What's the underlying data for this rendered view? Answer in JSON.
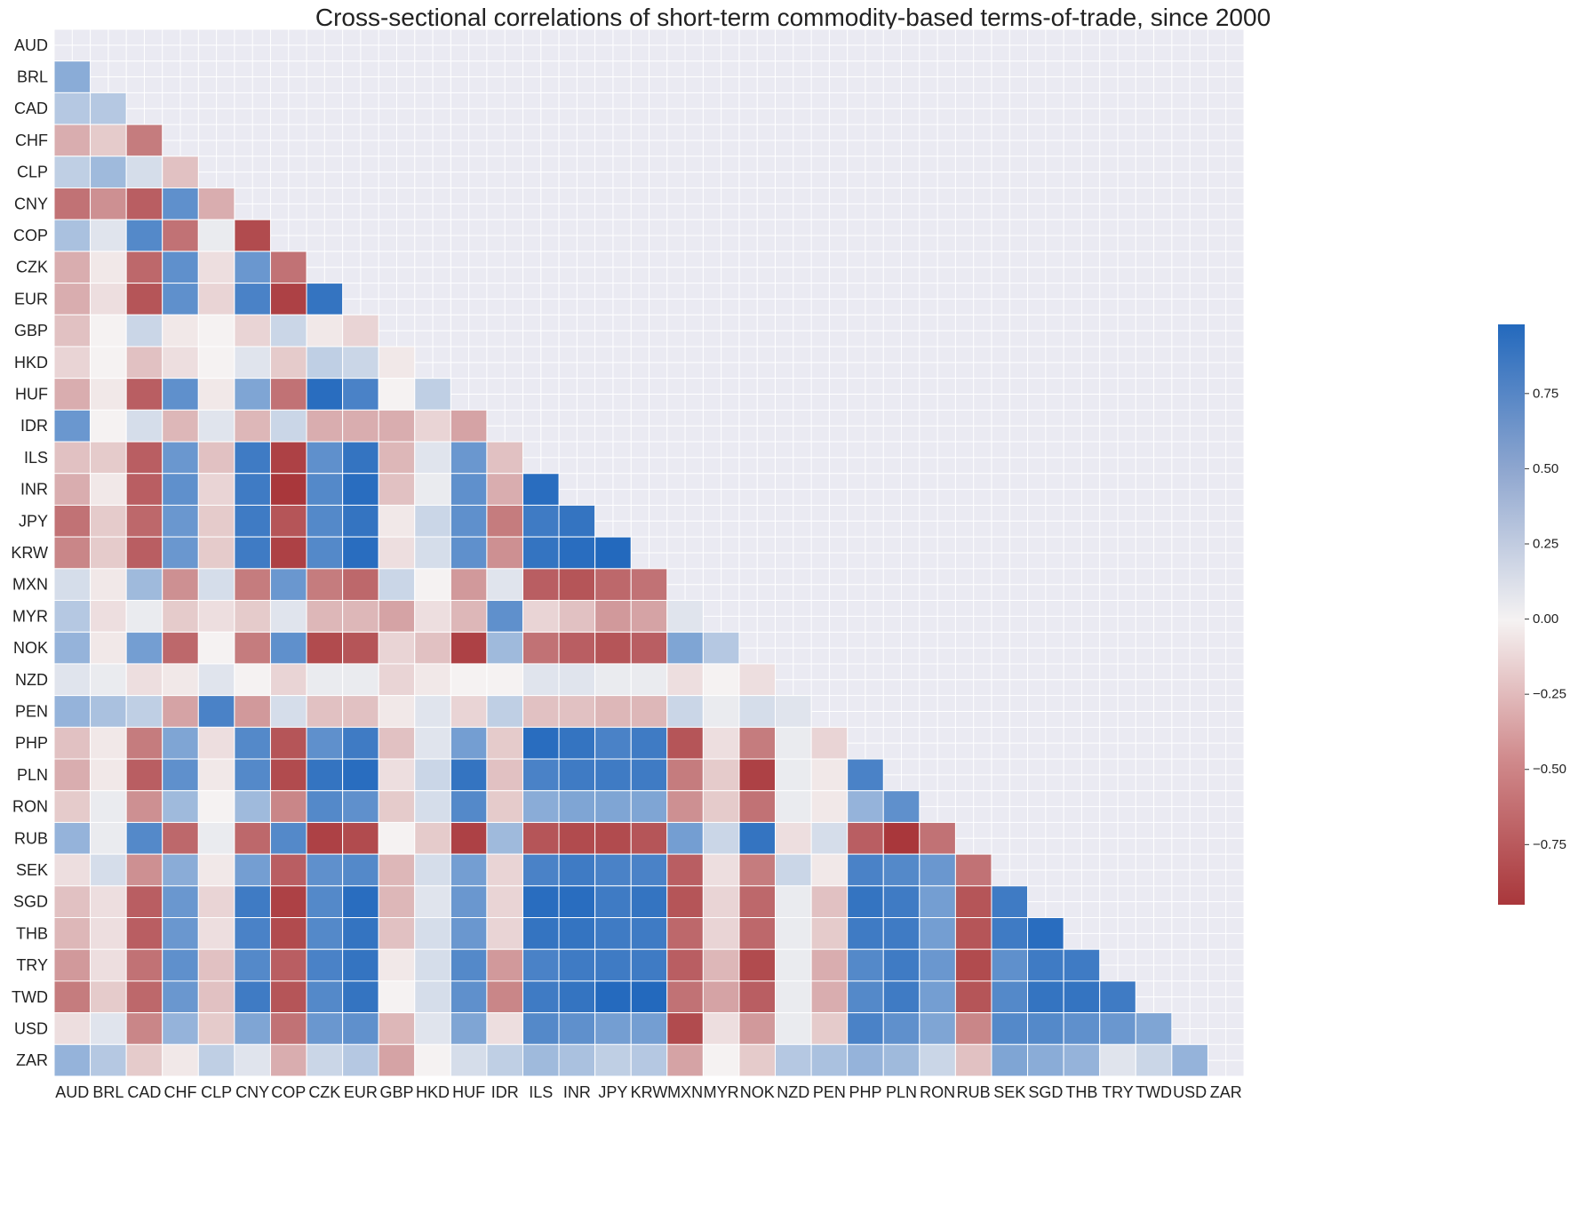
{
  "chart_data": {
    "type": "heatmap",
    "title": "Cross-sectional correlations of short-term commodity-based terms-of-trade, since 2000",
    "labels": [
      "AUD",
      "BRL",
      "CAD",
      "CHF",
      "CLP",
      "CNY",
      "COP",
      "CZK",
      "EUR",
      "GBP",
      "HKD",
      "HUF",
      "IDR",
      "ILS",
      "INR",
      "JPY",
      "KRW",
      "MXN",
      "MYR",
      "NOK",
      "NZD",
      "PEN",
      "PHP",
      "PLN",
      "RON",
      "RUB",
      "SEK",
      "SGD",
      "THB",
      "TRY",
      "TWD",
      "USD",
      "ZAR"
    ],
    "mask": "upper-triangle-and-diagonal",
    "rows": [
      [],
      [
        0.5
      ],
      [
        0.3,
        0.3
      ],
      [
        -0.35,
        -0.2,
        -0.6
      ],
      [
        0.25,
        0.4,
        0.15,
        -0.25
      ],
      [
        -0.65,
        -0.5,
        -0.75,
        0.7,
        -0.35
      ],
      [
        0.35,
        0.1,
        0.75,
        -0.65,
        0.05,
        -0.85
      ],
      [
        -0.35,
        -0.05,
        -0.7,
        0.7,
        -0.1,
        0.65,
        -0.65
      ],
      [
        -0.35,
        -0.1,
        -0.8,
        0.7,
        -0.15,
        0.8,
        -0.9,
        0.9
      ],
      [
        -0.25,
        0.0,
        0.2,
        -0.05,
        0.0,
        -0.15,
        0.2,
        -0.05,
        -0.15
      ],
      [
        -0.15,
        0.0,
        -0.25,
        -0.1,
        0.0,
        0.1,
        -0.2,
        0.25,
        0.2,
        -0.05
      ],
      [
        -0.35,
        -0.05,
        -0.75,
        0.7,
        -0.05,
        0.55,
        -0.65,
        0.95,
        0.8,
        0.0,
        0.25
      ],
      [
        0.65,
        0.0,
        0.15,
        -0.3,
        0.1,
        -0.3,
        0.2,
        -0.35,
        -0.35,
        -0.35,
        -0.15,
        -0.4
      ],
      [
        -0.25,
        -0.2,
        -0.75,
        0.65,
        -0.25,
        0.85,
        -0.9,
        0.7,
        0.9,
        -0.3,
        0.1,
        0.65,
        -0.25
      ],
      [
        -0.35,
        -0.05,
        -0.75,
        0.7,
        -0.15,
        0.85,
        -0.95,
        0.75,
        0.95,
        -0.25,
        0.05,
        0.7,
        -0.35,
        0.95
      ],
      [
        -0.65,
        -0.2,
        -0.7,
        0.65,
        -0.2,
        0.85,
        -0.8,
        0.75,
        0.9,
        -0.05,
        0.2,
        0.7,
        -0.6,
        0.85,
        0.9
      ],
      [
        -0.55,
        -0.2,
        -0.75,
        0.65,
        -0.2,
        0.85,
        -0.9,
        0.75,
        0.95,
        -0.1,
        0.15,
        0.7,
        -0.5,
        0.9,
        0.95,
        0.98
      ],
      [
        0.15,
        -0.05,
        0.4,
        -0.5,
        0.15,
        -0.6,
        0.65,
        -0.6,
        -0.7,
        0.2,
        0.0,
        -0.45,
        0.1,
        -0.75,
        -0.8,
        -0.7,
        -0.65
      ],
      [
        0.3,
        -0.1,
        0.05,
        -0.2,
        -0.1,
        -0.2,
        0.1,
        -0.3,
        -0.3,
        -0.4,
        -0.1,
        -0.3,
        0.7,
        -0.15,
        -0.25,
        -0.45,
        -0.4,
        0.1
      ],
      [
        0.45,
        -0.05,
        0.6,
        -0.7,
        0.0,
        -0.6,
        0.7,
        -0.85,
        -0.8,
        -0.15,
        -0.25,
        -0.9,
        0.4,
        -0.65,
        -0.75,
        -0.8,
        -0.75,
        0.55,
        0.3
      ],
      [
        0.1,
        0.05,
        -0.1,
        -0.05,
        0.1,
        0.0,
        -0.15,
        0.05,
        0.05,
        -0.15,
        -0.05,
        0.0,
        0.0,
        0.1,
        0.1,
        0.05,
        0.05,
        -0.1,
        0.0,
        -0.1
      ],
      [
        0.45,
        0.35,
        0.25,
        -0.4,
        0.8,
        -0.45,
        0.15,
        -0.25,
        -0.25,
        -0.05,
        0.1,
        -0.15,
        0.25,
        -0.25,
        -0.25,
        -0.3,
        -0.3,
        0.2,
        0.05,
        0.15,
        0.1
      ],
      [
        -0.25,
        -0.05,
        -0.6,
        0.55,
        -0.1,
        0.75,
        -0.8,
        0.7,
        0.85,
        -0.25,
        0.1,
        0.6,
        -0.2,
        0.95,
        0.9,
        0.8,
        0.85,
        -0.8,
        -0.1,
        -0.6,
        0.05,
        -0.15
      ],
      [
        -0.35,
        -0.05,
        -0.75,
        0.7,
        -0.05,
        0.75,
        -0.85,
        0.9,
        0.95,
        -0.1,
        0.2,
        0.9,
        -0.25,
        0.8,
        0.85,
        0.85,
        0.85,
        -0.6,
        -0.2,
        -0.9,
        0.05,
        -0.05,
        0.8
      ],
      [
        -0.2,
        0.05,
        -0.5,
        0.4,
        0.0,
        0.4,
        -0.55,
        0.75,
        0.7,
        -0.2,
        0.15,
        0.75,
        -0.2,
        0.5,
        0.55,
        0.55,
        0.55,
        -0.5,
        -0.2,
        -0.65,
        0.05,
        -0.05,
        0.45,
        0.7
      ],
      [
        0.45,
        0.05,
        0.75,
        -0.7,
        0.05,
        -0.7,
        0.75,
        -0.9,
        -0.85,
        0.0,
        -0.2,
        -0.9,
        0.4,
        -0.8,
        -0.85,
        -0.85,
        -0.8,
        0.6,
        0.2,
        0.9,
        -0.1,
        0.15,
        -0.75,
        -0.95,
        -0.65
      ],
      [
        -0.1,
        0.15,
        -0.5,
        0.5,
        -0.05,
        0.6,
        -0.75,
        0.7,
        0.75,
        -0.3,
        0.15,
        0.6,
        -0.15,
        0.8,
        0.85,
        0.8,
        0.8,
        -0.75,
        -0.1,
        -0.6,
        0.2,
        -0.05,
        0.8,
        0.75,
        0.65,
        -0.65
      ],
      [
        -0.25,
        -0.1,
        -0.75,
        0.65,
        -0.15,
        0.85,
        -0.9,
        0.75,
        0.95,
        -0.3,
        0.1,
        0.65,
        -0.15,
        0.95,
        0.95,
        0.85,
        0.9,
        -0.8,
        -0.15,
        -0.7,
        0.05,
        -0.25,
        0.9,
        0.85,
        0.6,
        -0.8,
        0.85
      ],
      [
        -0.3,
        -0.1,
        -0.75,
        0.65,
        -0.1,
        0.8,
        -0.85,
        0.75,
        0.9,
        -0.25,
        0.15,
        0.65,
        -0.15,
        0.9,
        0.9,
        0.85,
        0.85,
        -0.7,
        -0.15,
        -0.7,
        0.05,
        -0.2,
        0.85,
        0.85,
        0.6,
        -0.8,
        0.85,
        0.95
      ],
      [
        -0.45,
        -0.1,
        -0.65,
        0.7,
        -0.25,
        0.75,
        -0.75,
        0.8,
        0.9,
        -0.05,
        0.15,
        0.75,
        -0.45,
        0.8,
        0.85,
        0.85,
        0.85,
        -0.75,
        -0.3,
        -0.85,
        0.05,
        -0.35,
        0.75,
        0.85,
        0.65,
        -0.85,
        0.7,
        0.85,
        0.85
      ],
      [
        -0.6,
        -0.2,
        -0.7,
        0.65,
        -0.25,
        0.85,
        -0.8,
        0.75,
        0.9,
        0.0,
        0.15,
        0.7,
        -0.55,
        0.85,
        0.9,
        0.97,
        0.98,
        -0.65,
        -0.4,
        -0.75,
        0.05,
        -0.35,
        0.75,
        0.85,
        0.6,
        -0.8,
        0.75,
        0.9,
        0.9,
        0.85
      ],
      [
        -0.1,
        0.1,
        -0.55,
        0.45,
        -0.2,
        0.55,
        -0.65,
        0.65,
        0.7,
        -0.3,
        0.1,
        0.55,
        -0.1,
        0.75,
        0.7,
        0.6,
        0.6,
        -0.85,
        -0.1,
        -0.45,
        0.05,
        -0.2,
        0.8,
        0.7,
        0.55,
        -0.55,
        0.75,
        0.75,
        0.7,
        0.65,
        0.55
      ],
      [
        0.45,
        0.3,
        -0.2,
        -0.05,
        0.25,
        0.1,
        -0.35,
        0.2,
        0.3,
        -0.4,
        0.0,
        0.15,
        0.25,
        0.4,
        0.35,
        0.25,
        0.3,
        -0.4,
        0.0,
        -0.2,
        0.3,
        0.35,
        0.45,
        0.4,
        0.2,
        -0.25,
        0.55,
        0.5,
        0.45,
        0.1,
        0.2,
        0.45
      ]
    ],
    "colorbar": {
      "ticks": [
        0.75,
        0.5,
        0.25,
        0.0,
        -0.25,
        -0.5,
        -0.75
      ],
      "tick_labels": [
        "0.75",
        "0.50",
        "0.25",
        "0.00",
        "−0.25",
        "−0.50",
        "−0.75"
      ],
      "vmin": -0.95,
      "vmax": 0.98,
      "colormap": "vlag_r",
      "colors": {
        "low": "#a9373b",
        "mid": "#f5f2f2",
        "high": "#2369bd"
      }
    },
    "background_color": "#eaeaf2",
    "grid": true
  }
}
